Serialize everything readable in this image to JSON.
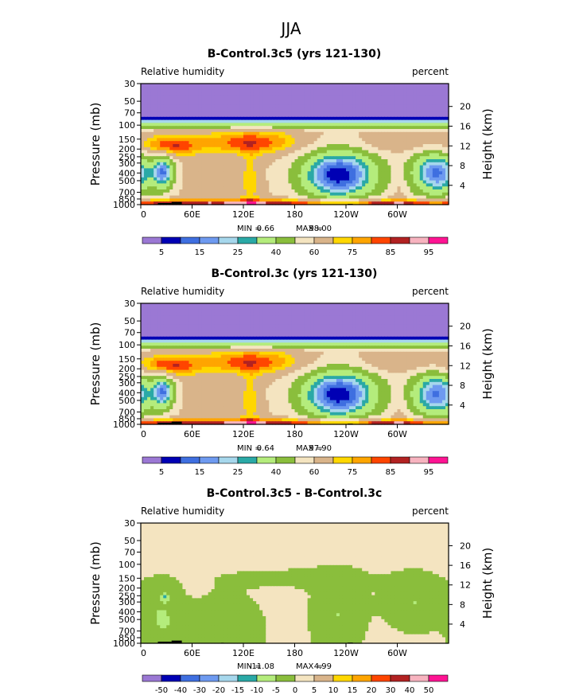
{
  "figure": {
    "main_title": "JJA",
    "colors": {
      "absolute": [
        "#9b78d4",
        "#0000b4",
        "#3f6fe0",
        "#6e9af0",
        "#a6d7ec",
        "#2aa9a6",
        "#b4ec7c",
        "#8abe3c",
        "#f4e4c0",
        "#d9b48a",
        "#ffd700",
        "#ffa500",
        "#ff4500",
        "#b22222",
        "#f7b3bf",
        "#ff1493"
      ],
      "difference": [
        "#9b78d4",
        "#0000b4",
        "#3f6fe0",
        "#6e9af0",
        "#a6d7ec",
        "#2aa9a6",
        "#b4ec7c",
        "#8abe3c",
        "#f4e4c0",
        "#d9b48a",
        "#ffd700",
        "#ffa500",
        "#ff4500",
        "#b22222",
        "#f7b3bf",
        "#ff1493"
      ],
      "terrain": "#000000"
    }
  },
  "chart_data": [
    {
      "type": "heatmap",
      "title": "B-Control.3c5 (yrs 121-130)",
      "left_label": "Relative humidity",
      "right_label": "percent",
      "ylabel": "Pressure (mb)",
      "ylabel_right": "Height (km)",
      "x_ticks": [
        "0",
        "60E",
        "120E",
        "180",
        "120W",
        "60W"
      ],
      "x_tick_values": [
        0,
        60,
        120,
        180,
        240,
        300
      ],
      "xlim": [
        0,
        360
      ],
      "y_ticks": [
        "30",
        "50",
        "70",
        "100",
        "150",
        "200",
        "250",
        "300",
        "400",
        "500",
        "700",
        "850",
        "1000"
      ],
      "y_tick_values": [
        30,
        50,
        70,
        100,
        150,
        200,
        250,
        300,
        400,
        500,
        700,
        850,
        1000
      ],
      "ylim": [
        1000,
        30
      ],
      "height_ticks": [
        "20",
        "16",
        "12",
        "8",
        "4"
      ],
      "height_tick_values": [
        20,
        16,
        12,
        8,
        4
      ],
      "stats": {
        "min_label": "MIN =",
        "min": "0.66",
        "max_label": "MAX =",
        "max": "98.00"
      },
      "colorbar": {
        "levels": [
          5,
          10,
          15,
          20,
          25,
          30,
          40,
          50,
          60,
          70,
          75,
          80,
          85,
          90,
          95
        ],
        "labels": [
          "5",
          "15",
          "25",
          "40",
          "60",
          "75",
          "85",
          "95"
        ],
        "label_levels": [
          5,
          15,
          25,
          40,
          60,
          75,
          85,
          95
        ]
      },
      "features": {
        "dry_cores": [
          {
            "lon": 232,
            "p": 420,
            "value": 8
          },
          {
            "lon": 345,
            "p": 400,
            "value": 12
          },
          {
            "lon": 27,
            "p": 390,
            "value": 28
          }
        ],
        "moist_upper_band": [
          {
            "lon": 30,
            "p": 190,
            "value": 90
          },
          {
            "lon": 135,
            "p": 170,
            "value": 85
          }
        ],
        "moist_boundary_layer": {
          "p": 950,
          "value": 92
        }
      }
    },
    {
      "type": "heatmap",
      "title": "B-Control.3c (yrs 121-130)",
      "left_label": "Relative humidity",
      "right_label": "percent",
      "ylabel": "Pressure (mb)",
      "ylabel_right": "Height (km)",
      "x_ticks": [
        "0",
        "60E",
        "120E",
        "180",
        "120W",
        "60W"
      ],
      "x_tick_values": [
        0,
        60,
        120,
        180,
        240,
        300
      ],
      "xlim": [
        0,
        360
      ],
      "y_ticks": [
        "30",
        "50",
        "70",
        "100",
        "150",
        "200",
        "250",
        "300",
        "400",
        "500",
        "700",
        "850",
        "1000"
      ],
      "y_tick_values": [
        30,
        50,
        70,
        100,
        150,
        200,
        250,
        300,
        400,
        500,
        700,
        850,
        1000
      ],
      "ylim": [
        1000,
        30
      ],
      "height_ticks": [
        "20",
        "16",
        "12",
        "8",
        "4"
      ],
      "height_tick_values": [
        20,
        16,
        12,
        8,
        4
      ],
      "stats": {
        "min_label": "MIN =",
        "min": "0.64",
        "max_label": "MAX =",
        "max": "97.90"
      },
      "colorbar": {
        "levels": [
          5,
          10,
          15,
          20,
          25,
          30,
          40,
          50,
          60,
          70,
          75,
          80,
          85,
          90,
          95
        ],
        "labels": [
          "5",
          "15",
          "25",
          "40",
          "60",
          "75",
          "85",
          "95"
        ],
        "label_levels": [
          5,
          15,
          25,
          40,
          60,
          75,
          85,
          95
        ]
      },
      "features": {
        "dry_cores": [
          {
            "lon": 232,
            "p": 420,
            "value": 8
          },
          {
            "lon": 345,
            "p": 420,
            "value": 12
          },
          {
            "lon": 27,
            "p": 400,
            "value": 28
          }
        ],
        "moist_upper_band": [
          {
            "lon": 30,
            "p": 190,
            "value": 90
          },
          {
            "lon": 135,
            "p": 170,
            "value": 85
          }
        ],
        "moist_boundary_layer": {
          "p": 950,
          "value": 92
        }
      }
    },
    {
      "type": "heatmap",
      "title": "B-Control.3c5 - B-Control.3c",
      "left_label": "Relative humidity",
      "right_label": "percent",
      "ylabel": "Pressure (mb)",
      "ylabel_right": "Height (km)",
      "x_ticks": [
        "0",
        "60E",
        "120E",
        "180",
        "120W",
        "60W"
      ],
      "x_tick_values": [
        0,
        60,
        120,
        180,
        240,
        300
      ],
      "xlim": [
        0,
        360
      ],
      "y_ticks": [
        "30",
        "50",
        "70",
        "100",
        "150",
        "200",
        "250",
        "300",
        "400",
        "500",
        "700",
        "850",
        "1000"
      ],
      "y_tick_values": [
        30,
        50,
        70,
        100,
        150,
        200,
        250,
        300,
        400,
        500,
        700,
        850,
        1000
      ],
      "ylim": [
        1000,
        30
      ],
      "height_ticks": [
        "20",
        "16",
        "12",
        "8",
        "4"
      ],
      "height_tick_values": [
        20,
        16,
        12,
        8,
        4
      ],
      "stats": {
        "min_label": "MIN =",
        "min": "-11.08",
        "max_label": "MAX =",
        "max": "4.99"
      },
      "colorbar": {
        "levels": [
          -50,
          -40,
          -30,
          -20,
          -15,
          -10,
          -5,
          0,
          5,
          10,
          15,
          20,
          30,
          40,
          50
        ],
        "labels": [
          "-50",
          "-40",
          "-30",
          "-20",
          "-15",
          "-10",
          "-5",
          "0",
          "5",
          "10",
          "15",
          "20",
          "30",
          "40",
          "50"
        ],
        "label_levels": [
          -50,
          -40,
          -30,
          -20,
          -15,
          -10,
          -5,
          0,
          5,
          10,
          15,
          20,
          30,
          40,
          50
        ]
      },
      "features": {
        "background_value": 2,
        "negative_regions_value": -2,
        "strong_negative": {
          "lon": 28,
          "p": 250,
          "value": -11
        }
      }
    }
  ]
}
